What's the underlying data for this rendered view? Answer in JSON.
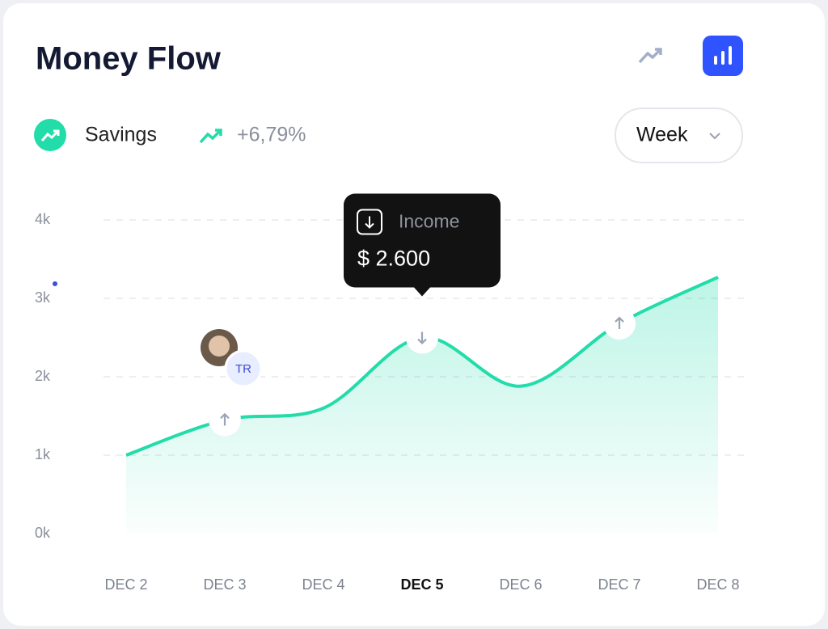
{
  "header": {
    "title": "Money Flow",
    "metric": "Savings",
    "change": "+6,79%",
    "period": "Week",
    "avatar_badge": "TR"
  },
  "chart_data": {
    "type": "area",
    "categories": [
      "DEC 2",
      "DEC 3",
      "DEC 4",
      "DEC 5",
      "DEC 6",
      "DEC 7",
      "DEC 8"
    ],
    "series": [
      {
        "name": "Savings",
        "color": "#22dcaa",
        "values": [
          1000,
          1450,
          1600,
          2500,
          1880,
          2680,
          3270
        ]
      }
    ],
    "ylim": [
      0,
      4000
    ],
    "yticks": [
      {
        "value": 0,
        "label": "0k"
      },
      {
        "value": 1000,
        "label": "1k"
      },
      {
        "value": 2000,
        "label": "2k"
      },
      {
        "value": 3000,
        "label": "3k"
      },
      {
        "value": 4000,
        "label": "4k"
      }
    ],
    "grid": true,
    "active_index": 3,
    "tooltip": {
      "label": "Income",
      "value": "$ 2.600"
    }
  }
}
